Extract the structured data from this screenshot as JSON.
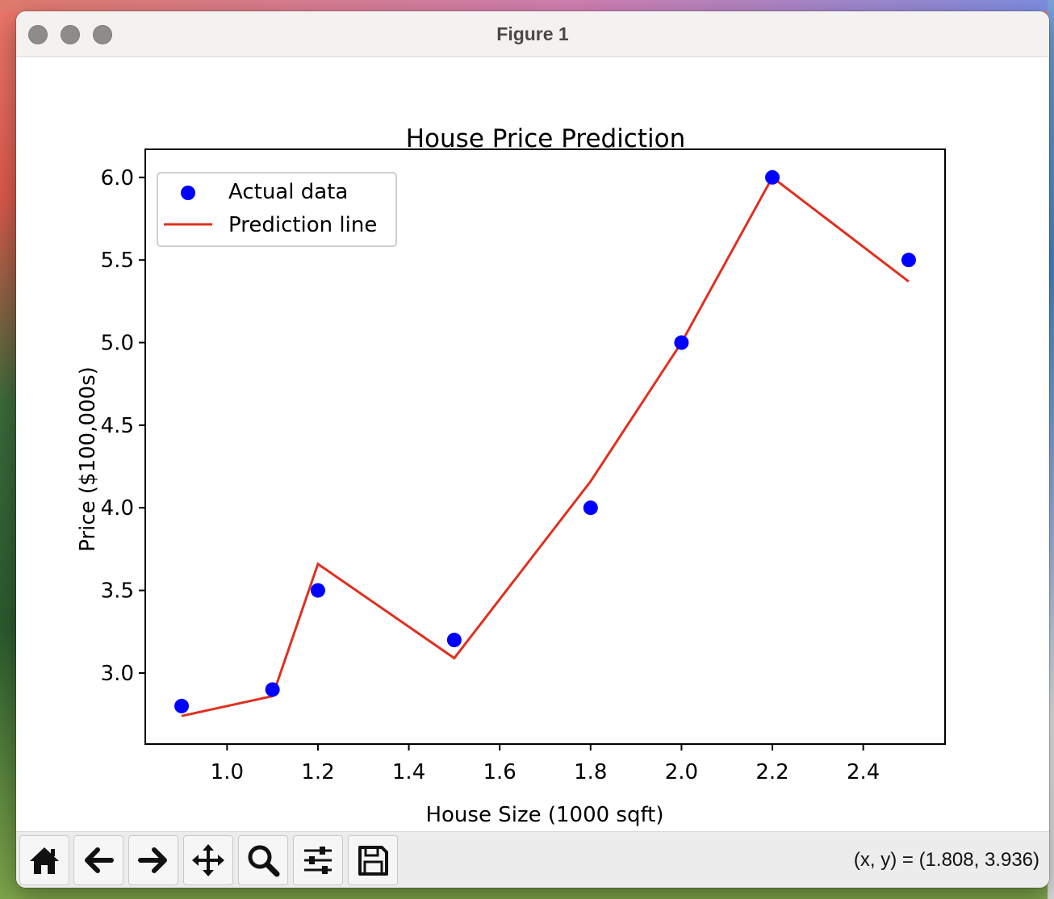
{
  "window": {
    "title": "Figure 1",
    "traffic_lights": [
      "close",
      "minimize",
      "zoom"
    ]
  },
  "toolbar": {
    "tools": [
      {
        "name": "home",
        "icon": "home-icon"
      },
      {
        "name": "back",
        "icon": "arrow-left-icon"
      },
      {
        "name": "forward",
        "icon": "arrow-right-icon"
      },
      {
        "name": "pan",
        "icon": "move-icon"
      },
      {
        "name": "zoom",
        "icon": "magnifier-icon"
      },
      {
        "name": "configure-subplots",
        "icon": "sliders-icon"
      },
      {
        "name": "save",
        "icon": "floppy-disk-icon"
      }
    ],
    "coords": "(x, y) = (1.808, 3.936)"
  },
  "chart_data": {
    "type": "scatter",
    "title": "House Price Prediction",
    "xlabel": "House Size (1000 sqft)",
    "ylabel": "Price ($100,000s)",
    "xlim": [
      0.82,
      2.58
    ],
    "ylim": [
      2.57,
      6.17
    ],
    "xticks": [
      1.0,
      1.2,
      1.4,
      1.6,
      1.8,
      2.0,
      2.2,
      2.4
    ],
    "xtick_labels": [
      "1.0",
      "1.2",
      "1.4",
      "1.6",
      "1.8",
      "2.0",
      "2.2",
      "2.4"
    ],
    "yticks": [
      3.0,
      3.5,
      4.0,
      4.5,
      5.0,
      5.5,
      6.0
    ],
    "ytick_labels": [
      "3.0",
      "3.5",
      "4.0",
      "4.5",
      "5.0",
      "5.5",
      "6.0"
    ],
    "grid": false,
    "legend": {
      "position": "top-left",
      "entries": [
        {
          "label": "Actual data",
          "kind": "marker",
          "color": "#0000ff"
        },
        {
          "label": "Prediction line",
          "kind": "line",
          "color": "#e03020"
        }
      ]
    },
    "series": [
      {
        "name": "Actual data",
        "kind": "scatter",
        "color": "#0000ff",
        "x": [
          0.9,
          1.1,
          1.2,
          1.5,
          1.8,
          2.0,
          2.2,
          2.5
        ],
        "y": [
          2.8,
          2.9,
          3.5,
          3.2,
          4.0,
          5.0,
          6.0,
          5.5
        ]
      },
      {
        "name": "Prediction line",
        "kind": "line",
        "color": "#e03020",
        "x": [
          0.9,
          1.1,
          1.2,
          1.5,
          1.8,
          2.0,
          2.2,
          2.5
        ],
        "y": [
          2.74,
          2.86,
          3.66,
          3.09,
          4.16,
          5.0,
          6.0,
          5.37
        ]
      }
    ]
  }
}
